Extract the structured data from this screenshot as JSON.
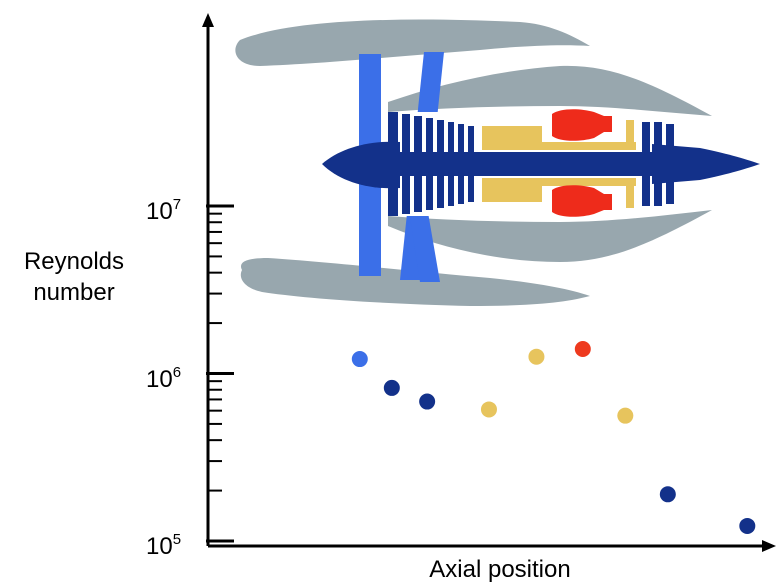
{
  "chart_data": {
    "type": "scatter",
    "xlabel": "Axial position",
    "ylabel_line1": "Reynolds",
    "ylabel_line2": "number",
    "yscale": "log",
    "ylim": [
      100000,
      100000000
    ],
    "yticks": [
      {
        "value": 100000,
        "base": "10",
        "exp": "5"
      },
      {
        "value": 1000000,
        "base": "10",
        "exp": "6"
      },
      {
        "value": 10000000,
        "base": "10",
        "exp": "7"
      }
    ],
    "xlim": [
      0,
      100
    ],
    "grid": false,
    "points": [
      {
        "x": 27.5,
        "y": 1220000,
        "color": "#3b6fe8"
      },
      {
        "x": 33.3,
        "y": 820000,
        "color": "#13318a"
      },
      {
        "x": 39.7,
        "y": 680000,
        "color": "#13318a"
      },
      {
        "x": 50.9,
        "y": 610000,
        "color": "#e7c45d"
      },
      {
        "x": 59.5,
        "y": 1260000,
        "color": "#e7c45d"
      },
      {
        "x": 67.9,
        "y": 1400000,
        "color": "#ee3a1e"
      },
      {
        "x": 75.6,
        "y": 560000,
        "color": "#e7c45d"
      },
      {
        "x": 83.3,
        "y": 190000,
        "color": "#13318a"
      },
      {
        "x": 97.7,
        "y": 123000,
        "color": "#13318a"
      }
    ]
  },
  "colors": {
    "nacelle": "#98a7ae",
    "fan": "#3b6fe8",
    "core": "#13318a",
    "combustor_ring": "#e7c45d",
    "combustor_flame": "#ee2b1b"
  },
  "icon": "turbofan-engine-cutaway"
}
